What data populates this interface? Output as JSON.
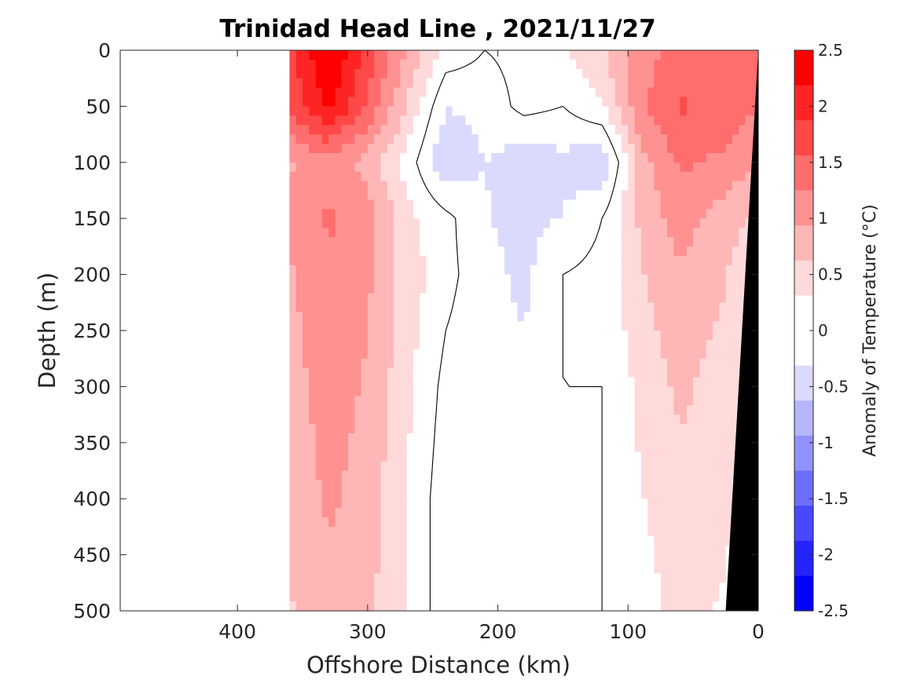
{
  "chart_data": {
    "type": "heatmap",
    "title": "Trinidad Head Line , 2021/11/27",
    "xlabel": "Offshore Distance (km)",
    "ylabel": "Depth (m)",
    "colorbar_label": "Anomaly of Temperature (°C)",
    "xlim": [
      490,
      0
    ],
    "ylim": [
      500,
      0
    ],
    "x_reversed": true,
    "y_reversed": true,
    "x_ticks": [
      400,
      300,
      200,
      100,
      0
    ],
    "y_ticks": [
      0,
      50,
      100,
      150,
      200,
      250,
      300,
      350,
      400,
      450,
      500
    ],
    "colorbar": {
      "range": [
        -2.5,
        2.5
      ],
      "tick_labels": [
        "2.5",
        "2",
        "1.5",
        "1",
        "0.5",
        "0",
        "-0.5",
        "-1",
        "-1.5",
        "-2",
        "-2.5"
      ],
      "tick_values": [
        2.5,
        2,
        1.5,
        1,
        0.5,
        0,
        -0.5,
        -1,
        -1.5,
        -2,
        -2.5
      ],
      "level_colors": [
        "#ff0000",
        "#ff2424",
        "#ff4848",
        "#ff6d6d",
        "#ff9191",
        "#ffb6b6",
        "#ffdada",
        "#ffffff",
        "#ffffff",
        "#dadaff",
        "#b6b6ff",
        "#9191ff",
        "#6d6dff",
        "#4848ff",
        "#2424ff",
        "#0000ff"
      ]
    },
    "data_extent_km": [
      360,
      0
    ],
    "distance_km": [
      360,
      330,
      300,
      270,
      240,
      210,
      180,
      150,
      120,
      90,
      60,
      30,
      5
    ],
    "depth_m": [
      0,
      50,
      100,
      150,
      200,
      300,
      400,
      500
    ],
    "anomaly_c": [
      [
        1.8,
        2.5,
        1.8,
        0.9,
        0.2,
        0.0,
        0.1,
        0.3,
        0.6,
        1.1,
        1.4,
        1.5,
        1.4
      ],
      [
        1.6,
        2.3,
        1.5,
        0.6,
        -0.3,
        -0.2,
        0.1,
        0.0,
        0.3,
        1.2,
        1.6,
        1.5,
        1.3
      ],
      [
        0.9,
        1.1,
        0.8,
        0.2,
        -0.6,
        -0.3,
        -0.5,
        -0.4,
        -0.6,
        0.8,
        1.3,
        1.2,
        1.0
      ],
      [
        1.0,
        1.3,
        1.1,
        0.4,
        0.1,
        -0.3,
        -0.4,
        -0.3,
        0.0,
        0.7,
        1.1,
        0.8,
        0.6
      ],
      [
        0.9,
        1.2,
        1.0,
        0.5,
        0.1,
        -0.2,
        -0.4,
        0.0,
        0.1,
        0.6,
        0.9,
        0.7,
        0.4
      ],
      [
        0.8,
        1.1,
        0.9,
        0.4,
        -0.1,
        -0.2,
        -0.2,
        0.0,
        0.0,
        0.4,
        0.7,
        0.5,
        0.3
      ],
      [
        0.7,
        1.0,
        0.8,
        0.3,
        -0.2,
        -0.2,
        -0.2,
        -0.2,
        0.0,
        0.3,
        0.5,
        0.4,
        0.2
      ],
      [
        0.6,
        0.8,
        0.7,
        0.3,
        -0.2,
        -0.2,
        -0.2,
        -0.2,
        0.0,
        0.2,
        0.4,
        0.3,
        0.2
      ]
    ],
    "bottom_topography": {
      "color": "#000000",
      "distance_km": [
        0,
        25
      ],
      "depth_m": [
        0,
        500
      ]
    },
    "grid": false,
    "legend": "colorbar-right"
  }
}
